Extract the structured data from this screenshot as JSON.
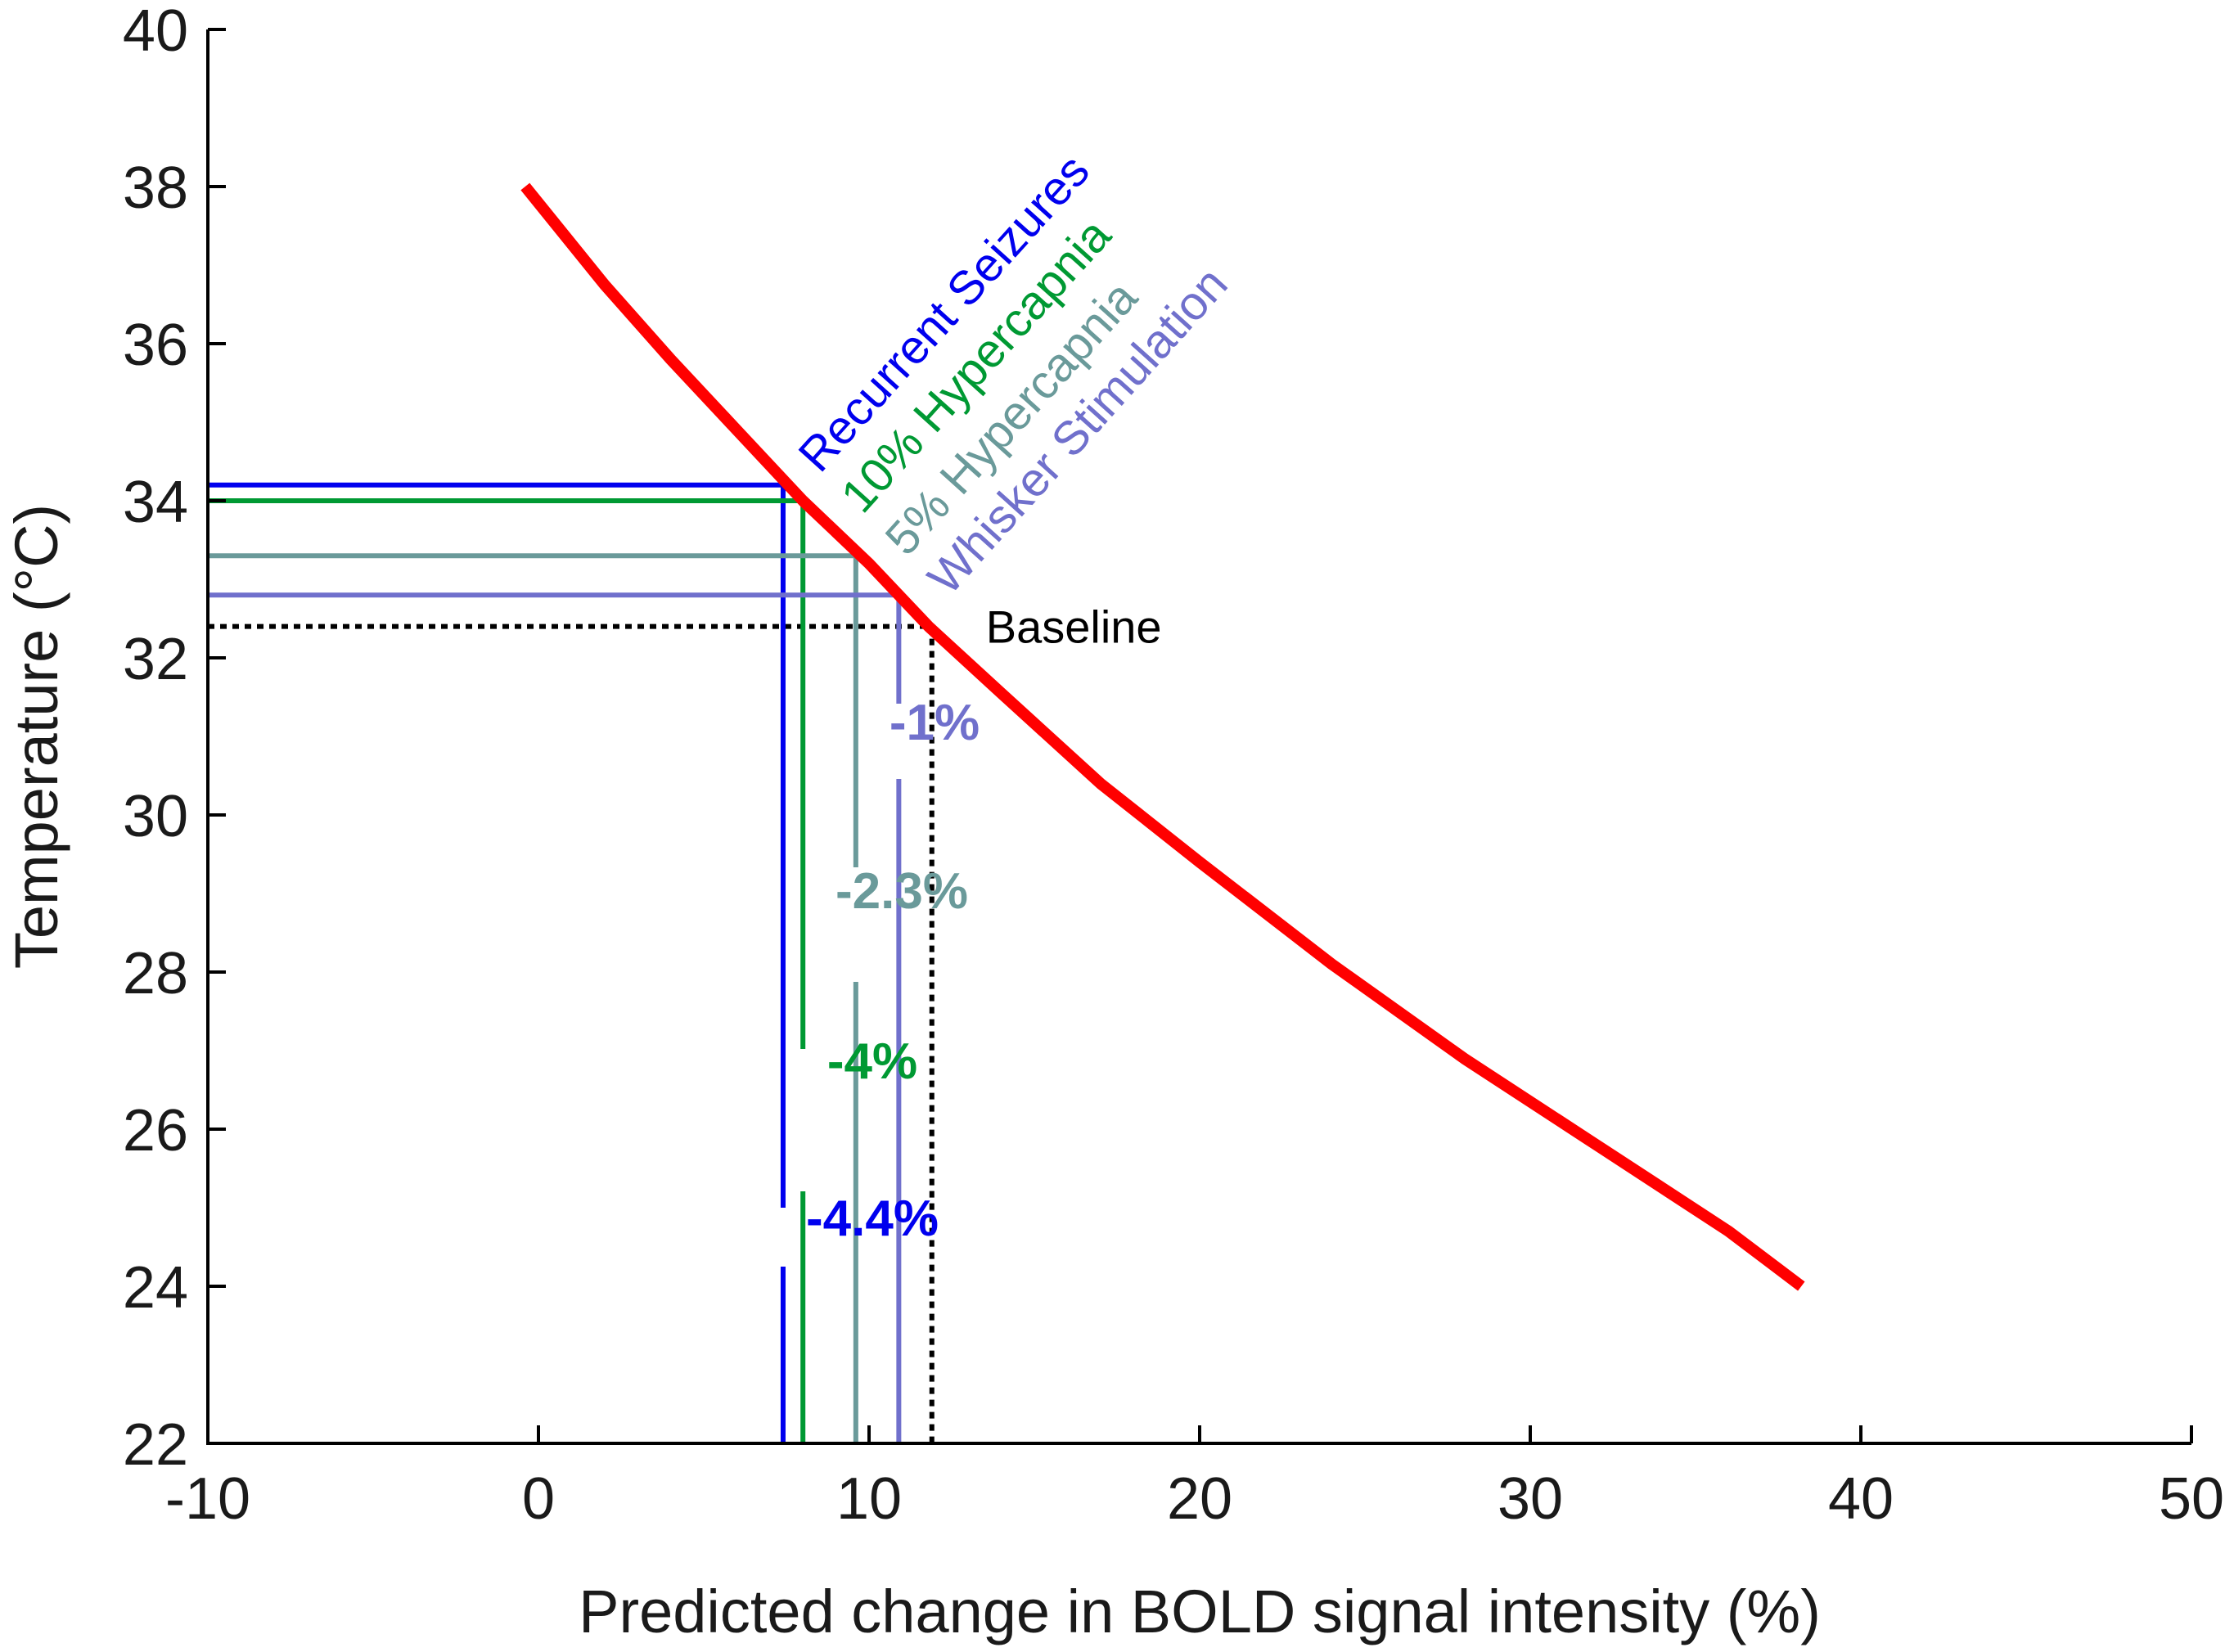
{
  "chart_data": {
    "type": "line",
    "xlabel": "Predicted change in BOLD signal intensity (%)",
    "ylabel": "Temperature (°C)",
    "xlim": [
      -10,
      50
    ],
    "ylim": [
      22,
      40
    ],
    "x_ticks": [
      "-10",
      "0",
      "10",
      "20",
      "30",
      "40",
      "50"
    ],
    "y_ticks": [
      "22",
      "24",
      "26",
      "28",
      "30",
      "32",
      "34",
      "36",
      "38",
      "40"
    ],
    "grid": false,
    "series": [
      {
        "kind": "curve",
        "color": "#ff0000",
        "x": [
          -0.4,
          2,
          4,
          6,
          8,
          10,
          11.8,
          14,
          17,
          20,
          24,
          28,
          32,
          36,
          38.2
        ],
        "y": [
          38.0,
          36.75,
          35.8,
          34.9,
          34.0,
          33.2,
          32.4,
          31.55,
          30.4,
          29.4,
          28.1,
          26.9,
          25.8,
          24.7,
          24.0
        ]
      }
    ],
    "conditions": [
      {
        "label": "Recurrent Seizures",
        "value_label": "-4.4%",
        "color": "#0000ee",
        "x": 7.4,
        "y": 34.2
      },
      {
        "label": "10% Hypercapnia",
        "value_label": "-4%",
        "color": "#009933",
        "x": 8.0,
        "y": 34.0
      },
      {
        "label": "5% Hypercapnia",
        "value_label": "-2.3%",
        "color": "#6a9a9a",
        "x": 9.6,
        "y": 33.3
      },
      {
        "label": "Whisker Stimulation",
        "value_label": "-1%",
        "color": "#7070cc",
        "x": 10.9,
        "y": 32.8
      }
    ],
    "baseline": {
      "label": "Baseline",
      "color": "#000000",
      "x": 11.9,
      "y": 32.4
    }
  }
}
